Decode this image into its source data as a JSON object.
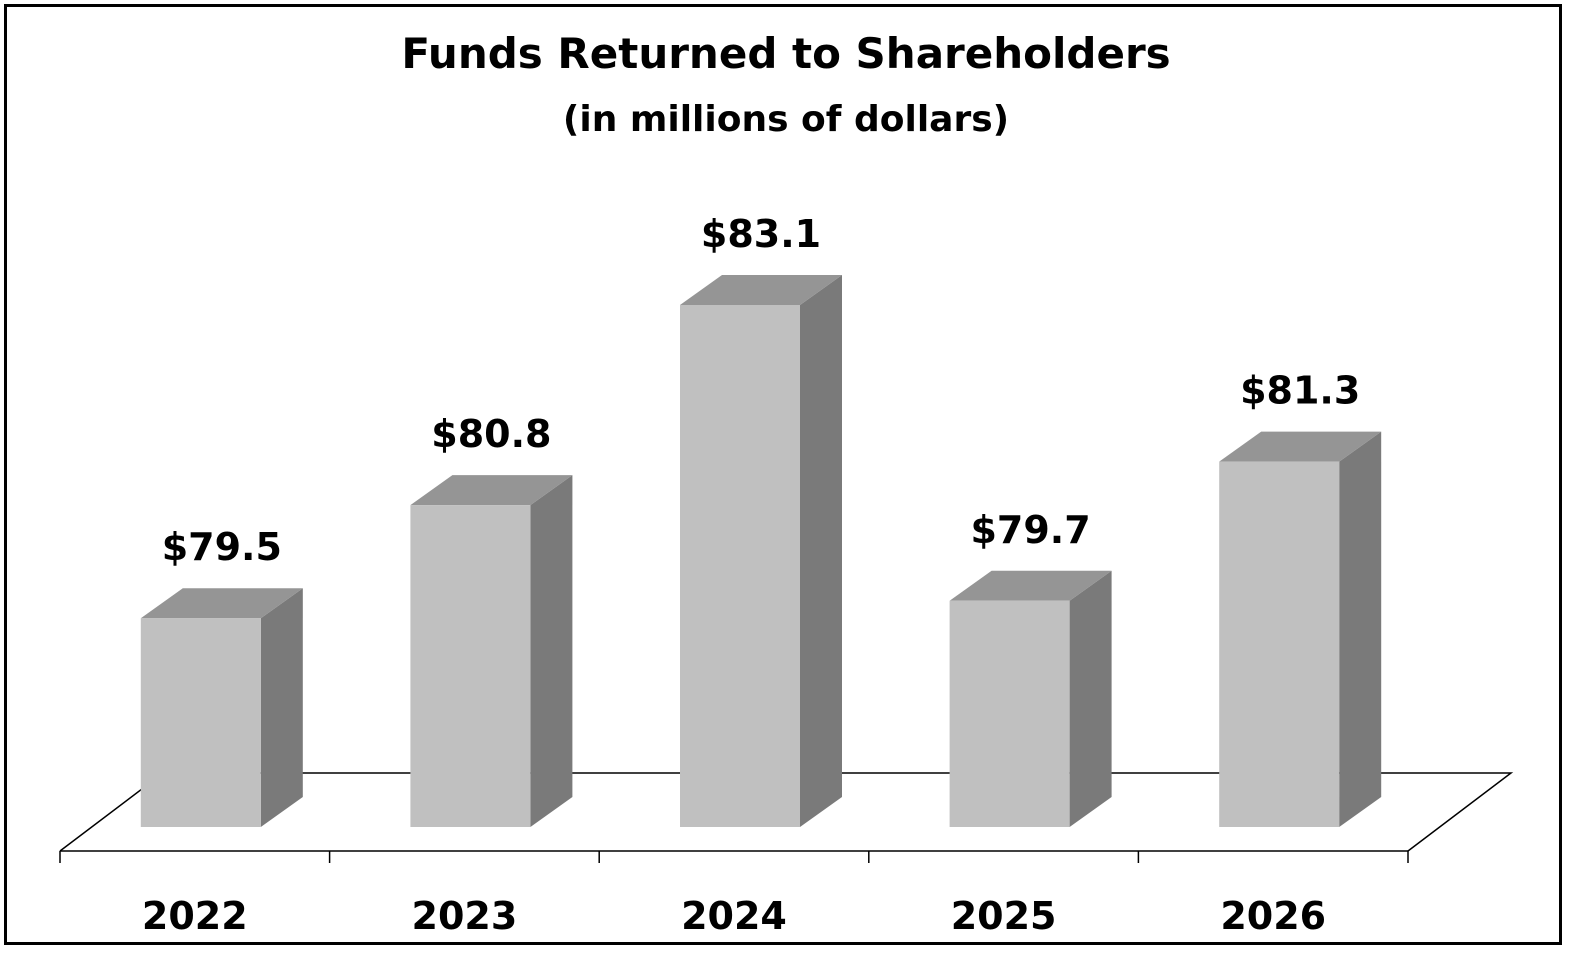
{
  "chart_data": {
    "type": "bar",
    "title": "Funds Returned to Shareholders",
    "subtitle": "(in millions of dollars)",
    "categories": [
      "2022",
      "2023",
      "2024",
      "2025",
      "2026"
    ],
    "values": [
      79.5,
      80.8,
      83.1,
      79.7,
      81.3
    ],
    "data_labels": [
      "$79.5",
      "$80.8",
      "$83.1",
      "$79.7",
      "$81.3"
    ],
    "xlabel": "",
    "ylabel": "",
    "ylim": [
      77.1,
      83.1
    ],
    "grid": false,
    "legend": "none",
    "style": "3d-column",
    "colors": {
      "bar_front": "#c0c0c0",
      "bar_top": "#959595",
      "bar_side": "#7a7a7a",
      "floor_line": "#000000"
    }
  }
}
